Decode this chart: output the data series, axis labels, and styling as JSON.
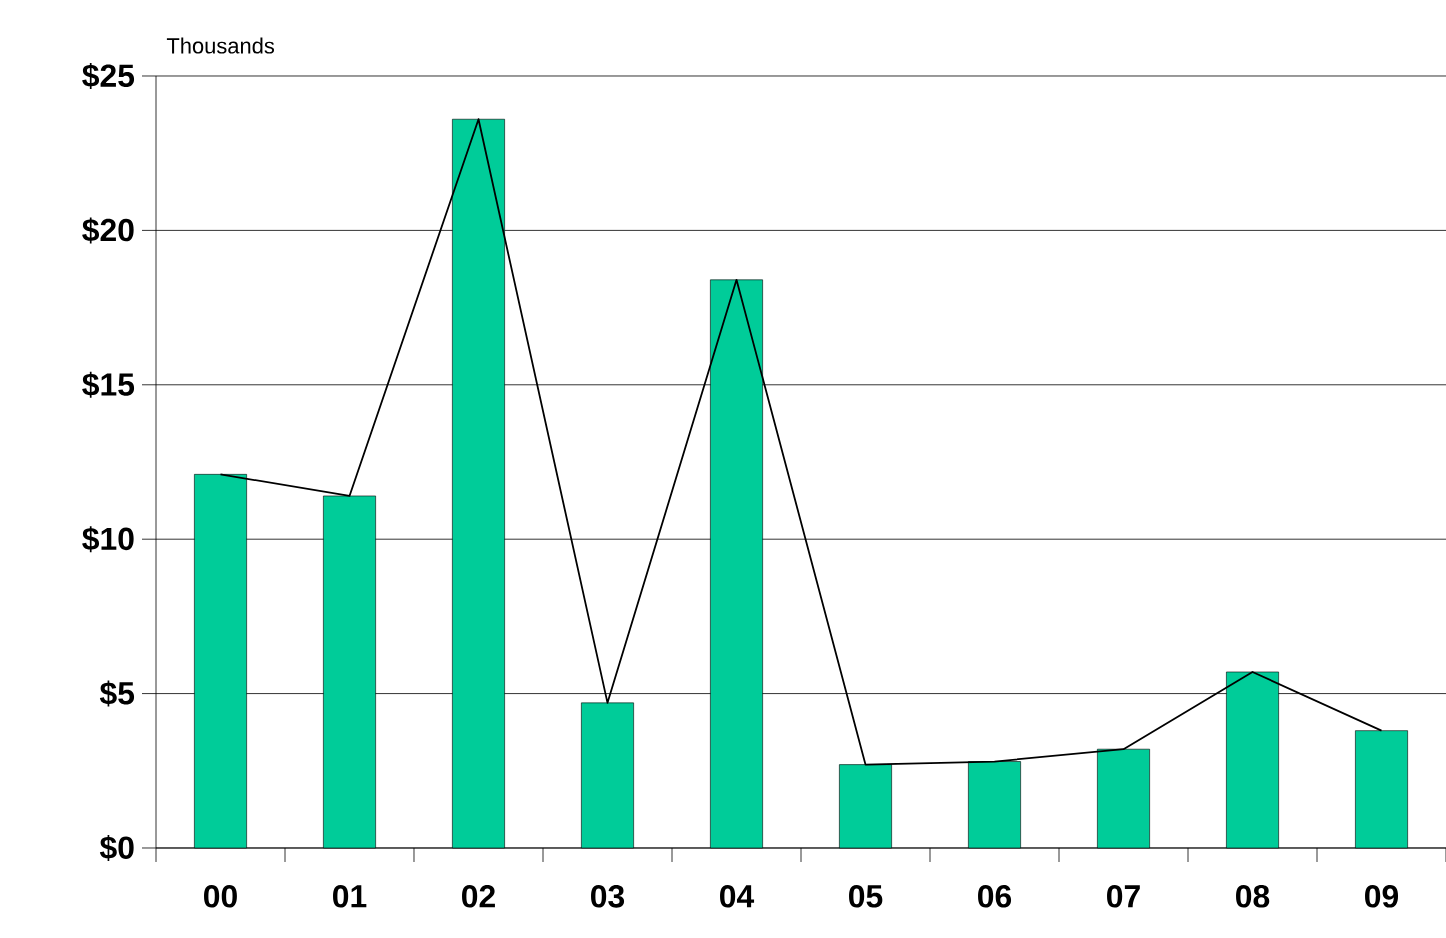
{
  "chart_data": {
    "type": "bar",
    "ylabel": "Thousands",
    "categories": [
      "00",
      "01",
      "02",
      "03",
      "04",
      "05",
      "06",
      "07",
      "08",
      "09"
    ],
    "series": [
      {
        "color": "#00cc99",
        "values": [
          12.1,
          11.4,
          23.6,
          4.7,
          18.4,
          2.7,
          2.8,
          3.2,
          5.7,
          3.8
        ]
      },
      {
        "type": "line",
        "color": "#000000",
        "values": [
          12.1,
          11.4,
          23.6,
          4.7,
          18.4,
          2.7,
          2.8,
          3.2,
          5.7,
          3.8
        ]
      }
    ],
    "ylim": [
      0,
      25
    ],
    "yticks": [
      {
        "value": 0,
        "label": "$0"
      },
      {
        "value": 5,
        "label": "$5"
      },
      {
        "value": 10,
        "label": "$10"
      },
      {
        "value": 15,
        "label": "$15"
      },
      {
        "value": 20,
        "label": "$20"
      },
      {
        "value": 25,
        "label": "$25"
      }
    ],
    "grid": "y",
    "marker": "none",
    "line_style": "solid"
  }
}
